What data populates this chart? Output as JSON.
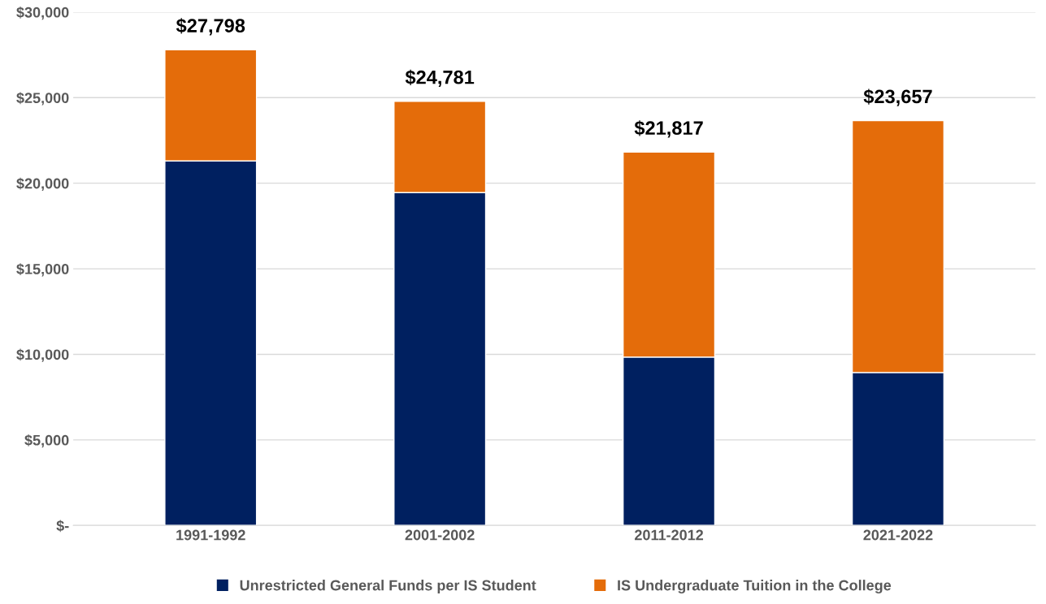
{
  "chart_data": {
    "type": "bar",
    "stacked": true,
    "categories": [
      "1991-1992",
      "2001-2002",
      "2011-2012",
      "2021-2022"
    ],
    "series": [
      {
        "name": "Unrestricted General Funds per IS Student",
        "color": "#002060",
        "values": [
          21300,
          19450,
          9840,
          8940
        ]
      },
      {
        "name": "IS Undergraduate Tuition in the College",
        "color": "#e46c0a",
        "values": [
          6498,
          5331,
          11977,
          14717
        ]
      }
    ],
    "totals": [
      "$27,798",
      "$24,781",
      "$21,817",
      "$23,657"
    ],
    "ylim": [
      0,
      30000
    ],
    "yticks": [
      {
        "value": 0,
        "label": "$-"
      },
      {
        "value": 5000,
        "label": "$5,000"
      },
      {
        "value": 10000,
        "label": "$10,000"
      },
      {
        "value": 15000,
        "label": "$15,000"
      },
      {
        "value": 20000,
        "label": "$20,000"
      },
      {
        "value": 25000,
        "label": "$25,000"
      },
      {
        "value": 30000,
        "label": "$30,000"
      }
    ],
    "grid": "y",
    "legend": "bottom"
  }
}
